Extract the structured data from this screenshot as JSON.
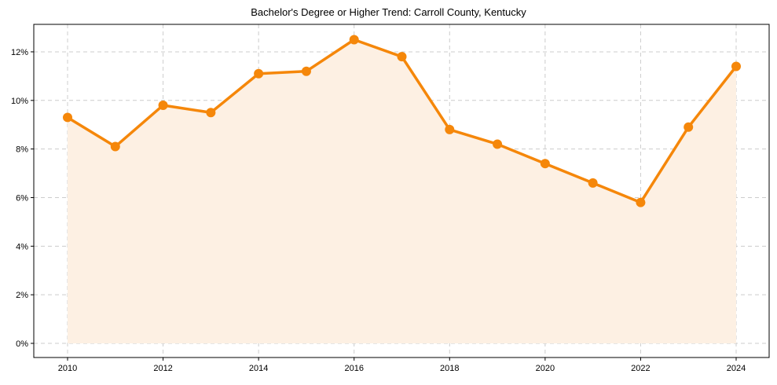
{
  "chart_data": {
    "type": "line",
    "title": "Bachelor's Degree or Higher Trend: Carroll County, Kentucky",
    "xlabel": "",
    "ylabel": "",
    "x": [
      2010,
      2011,
      2012,
      2013,
      2014,
      2015,
      2016,
      2017,
      2018,
      2019,
      2020,
      2021,
      2022,
      2023,
      2024
    ],
    "series": [
      {
        "name": "Bachelor's Degree or Higher",
        "values": [
          9.3,
          8.1,
          9.8,
          9.5,
          11.1,
          11.2,
          12.5,
          11.8,
          8.8,
          8.2,
          7.4,
          6.6,
          5.8,
          8.9,
          11.4
        ],
        "color": "#f5870a"
      }
    ],
    "xticks": [
      2010,
      2012,
      2014,
      2016,
      2018,
      2020,
      2022,
      2024
    ],
    "xtick_labels": [
      "2010",
      "2012",
      "2014",
      "2016",
      "2018",
      "2020",
      "2022",
      "2024"
    ],
    "yticks": [
      0,
      2,
      4,
      6,
      8,
      10,
      12
    ],
    "ytick_labels": [
      "0%",
      "2%",
      "4%",
      "6%",
      "8%",
      "10%",
      "12%"
    ],
    "ylim": [
      -0.6,
      13.2
    ],
    "xlim": [
      2009.3,
      2024.7
    ],
    "grid": true,
    "fill_color": "#fdf0e3"
  }
}
